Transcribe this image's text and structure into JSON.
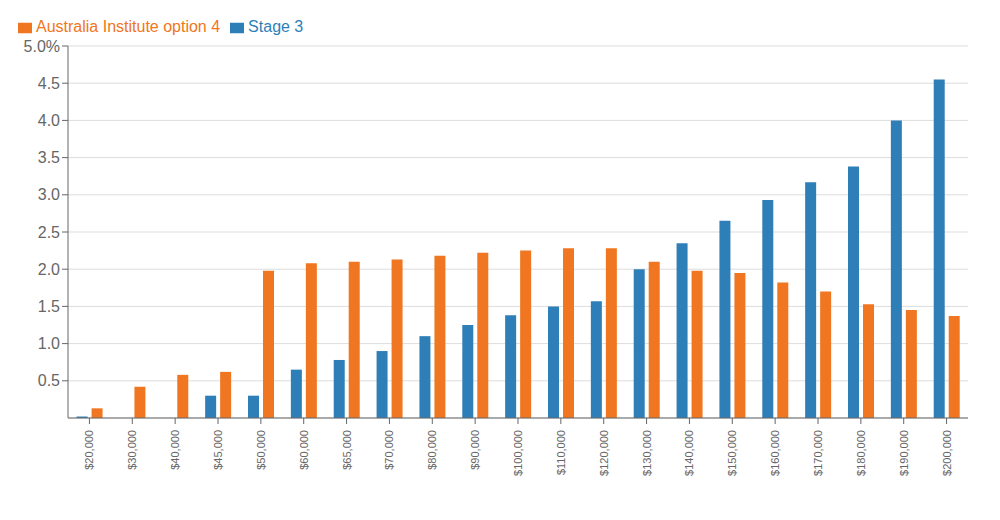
{
  "chart_data": {
    "type": "bar",
    "categories": [
      "$20,000",
      "$30,000",
      "$40,000",
      "$45,000",
      "$50,000",
      "$60,000",
      "$65,000",
      "$70,000",
      "$80,000",
      "$90,000",
      "$100,000",
      "$110,000",
      "$120,000",
      "$130,000",
      "$140,000",
      "$150,000",
      "$160,000",
      "$170,000",
      "$180,000",
      "$190,000",
      "$200,000"
    ],
    "series": [
      {
        "name": "Stage 3",
        "color": "#2e7fb8",
        "values": [
          0.02,
          0.0,
          0.0,
          0.3,
          0.3,
          0.65,
          0.78,
          0.9,
          1.1,
          1.25,
          1.38,
          1.5,
          1.57,
          2.0,
          2.35,
          2.65,
          2.93,
          3.17,
          3.38,
          4.0,
          4.55
        ]
      },
      {
        "name": "Australia Institute option 4",
        "color": "#f07621",
        "values": [
          0.13,
          0.42,
          0.58,
          0.62,
          1.98,
          2.08,
          2.1,
          2.13,
          2.18,
          2.22,
          2.25,
          2.28,
          2.28,
          2.1,
          1.98,
          1.95,
          1.82,
          1.7,
          1.53,
          1.45,
          1.37
        ]
      }
    ],
    "ylim": [
      0,
      5.0
    ],
    "yticks": [
      0.5,
      {
        "value": 1.0,
        "label": "1.0"
      },
      1.5,
      {
        "value": 2.0,
        "label": "2.0"
      },
      2.5,
      {
        "value": 3.0,
        "label": "3.0"
      },
      3.5,
      {
        "value": 4.0,
        "label": "4.0"
      },
      4.5,
      {
        "value": 5.0,
        "label": "5.0%"
      }
    ],
    "grid": true,
    "legend": "upper left"
  }
}
